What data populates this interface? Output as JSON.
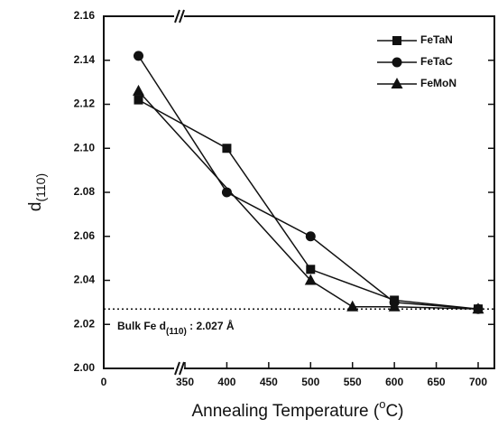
{
  "chart_data": {
    "type": "line",
    "x_label": {
      "text": "Annealing Temperature (",
      "sup": "o",
      "rest": "C)"
    },
    "y_label": {
      "text": "d",
      "sub": "(110)"
    },
    "x": [
      25,
      400,
      500,
      550,
      600,
      700
    ],
    "series": [
      {
        "name": "FeTaN",
        "color": "#111111",
        "marker": "square",
        "values": [
          2.122,
          2.1,
          2.045,
          null,
          2.031,
          2.027
        ]
      },
      {
        "name": "FeTaC",
        "color": "#111111",
        "marker": "circle",
        "values": [
          2.142,
          2.08,
          2.06,
          null,
          2.03,
          2.027
        ]
      },
      {
        "name": "FeMoN",
        "color": "#111111",
        "marker": "triangle",
        "values": [
          2.126,
          null,
          2.04,
          2.028,
          2.028,
          2.027
        ]
      }
    ],
    "xlim": [
      0,
      700
    ],
    "x_break": [
      50,
      350
    ],
    "xticks": [
      0,
      350,
      400,
      450,
      500,
      550,
      600,
      650,
      700
    ],
    "ylim": [
      2,
      2.16
    ],
    "yticks": [
      {
        "value": 2,
        "label": "2.00"
      },
      2.02,
      2.04,
      2.06,
      2.08,
      {
        "value": 2.1,
        "label": "2.10"
      },
      2.12,
      2.14,
      2.16
    ],
    "reference_line": {
      "value": 2.027,
      "text": "Bulk Fe d",
      "sub": "(110)",
      "rest": " : 2.027 Å"
    },
    "legend": "upper right"
  }
}
